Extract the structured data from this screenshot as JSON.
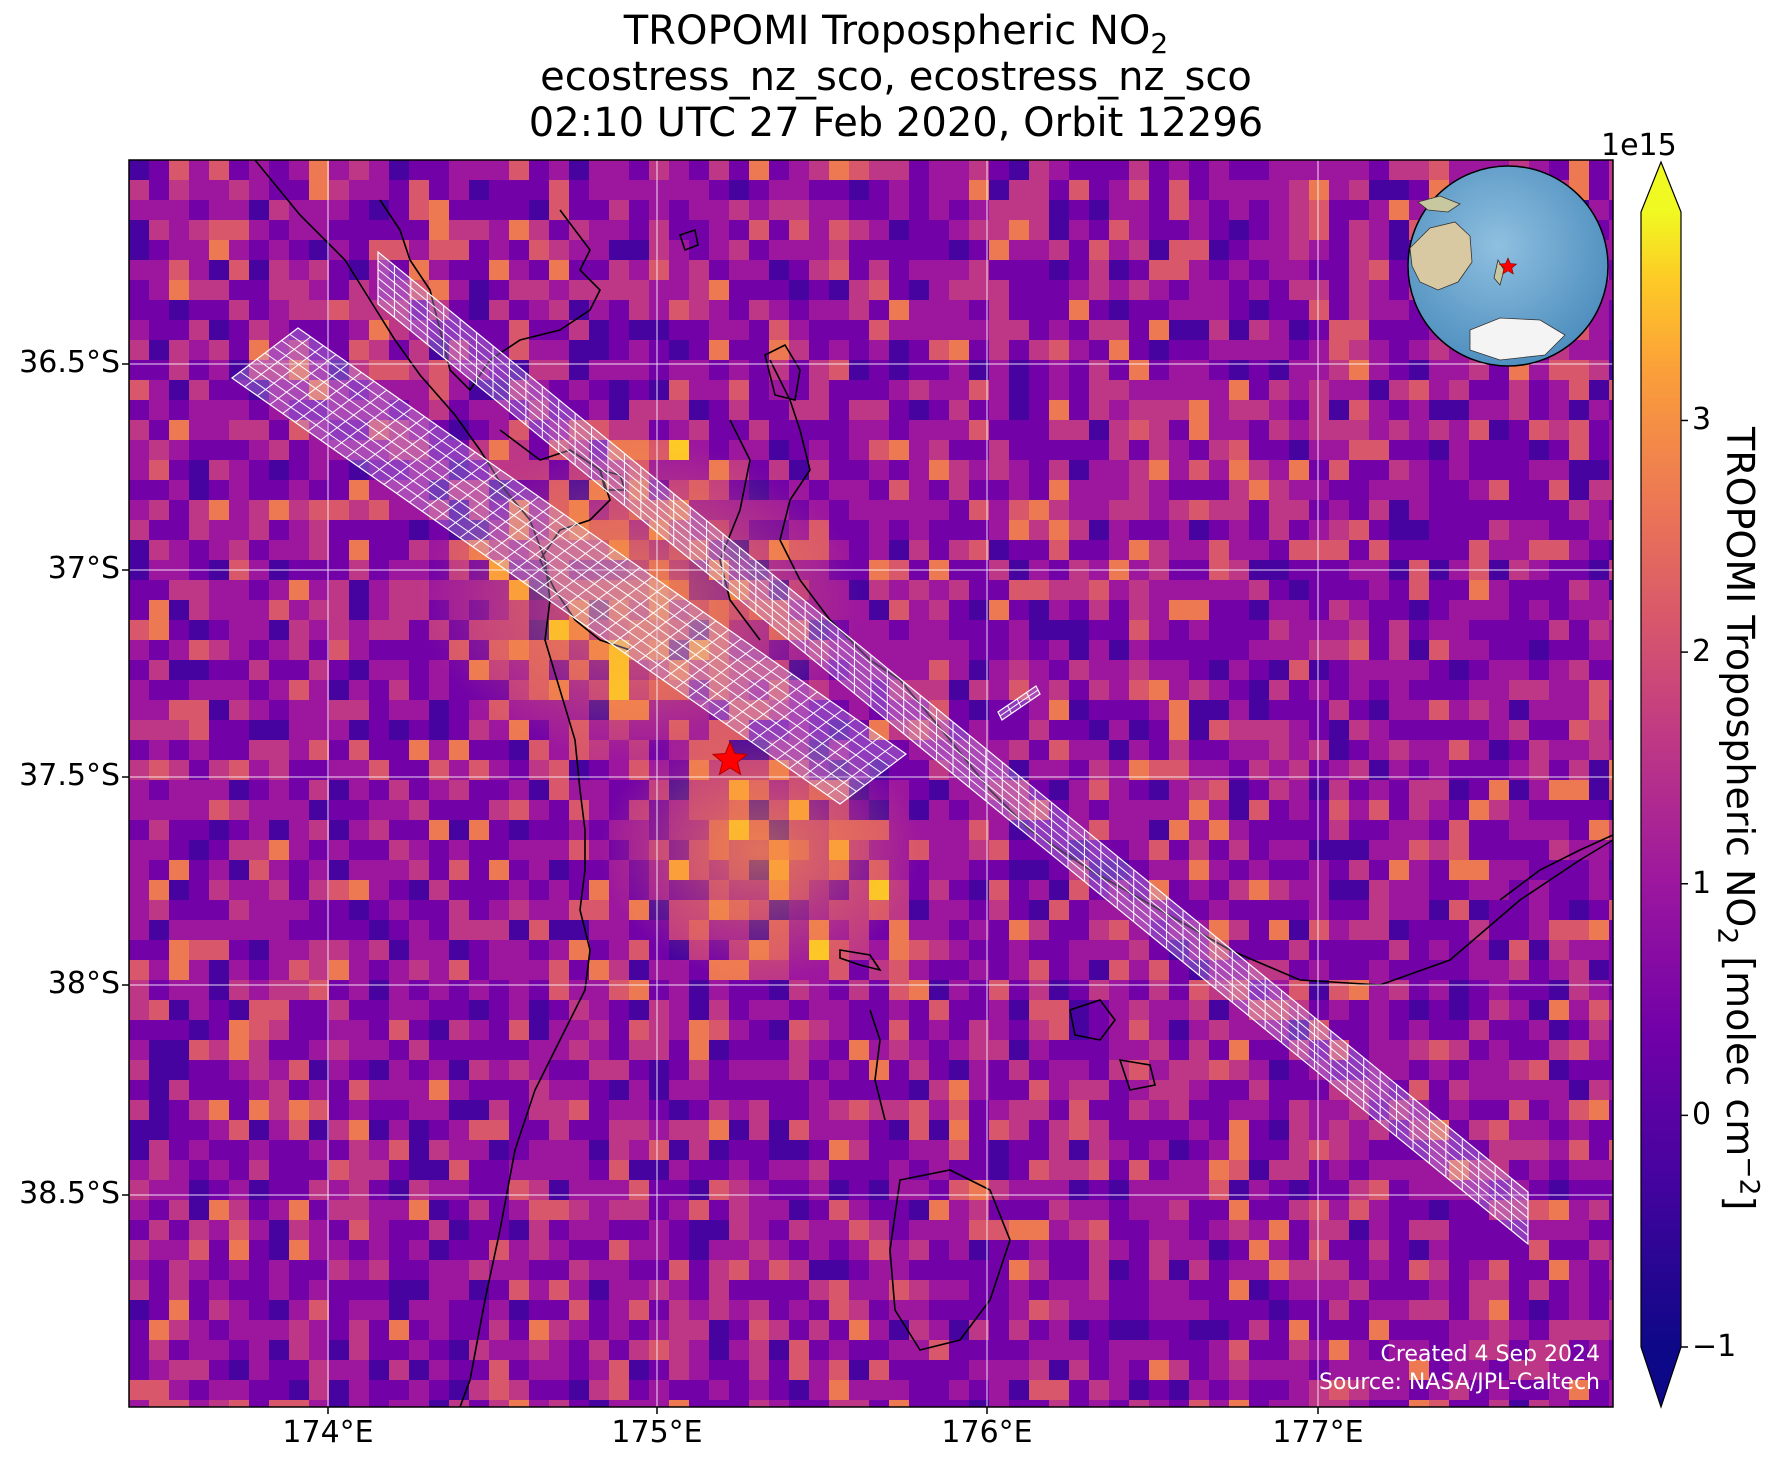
{
  "title": {
    "line1_prefix": "TROPOMI Tropospheric NO",
    "line1_sub": "2",
    "line2": "ecostress_nz_sco, ecostress_nz_sco",
    "line3": "02:10 UTC 27 Feb 2020, Orbit 12296"
  },
  "map": {
    "lat_ticks": [
      "36.5°S",
      "37°S",
      "37.5°S",
      "38°S",
      "38.5°S"
    ],
    "lon_ticks": [
      "174°E",
      "175°E",
      "176°E",
      "177°E"
    ],
    "colormap": "plasma",
    "target_marker": "red-star",
    "target_color": "#ff0000",
    "overlay": "ecostress-footprint-grid",
    "overlay_color": "#ffffff",
    "inset": "globe-locator"
  },
  "colorbar": {
    "exponent": "1e15",
    "ticks": [
      "3",
      "2",
      "1",
      "0",
      "−1"
    ],
    "tick_values": [
      3,
      2,
      1,
      0,
      -1
    ],
    "range": [
      -1,
      3.9
    ],
    "extend": "both",
    "label_prefix": "TROPOMI Tropospheric NO",
    "label_sub": "2",
    "label_mid": " [molec cm",
    "label_sup": "−2",
    "label_suffix": "]"
  },
  "credits": {
    "created": "Created 4 Sep 2024",
    "source": "Source: NASA/JPL-Caltech"
  }
}
